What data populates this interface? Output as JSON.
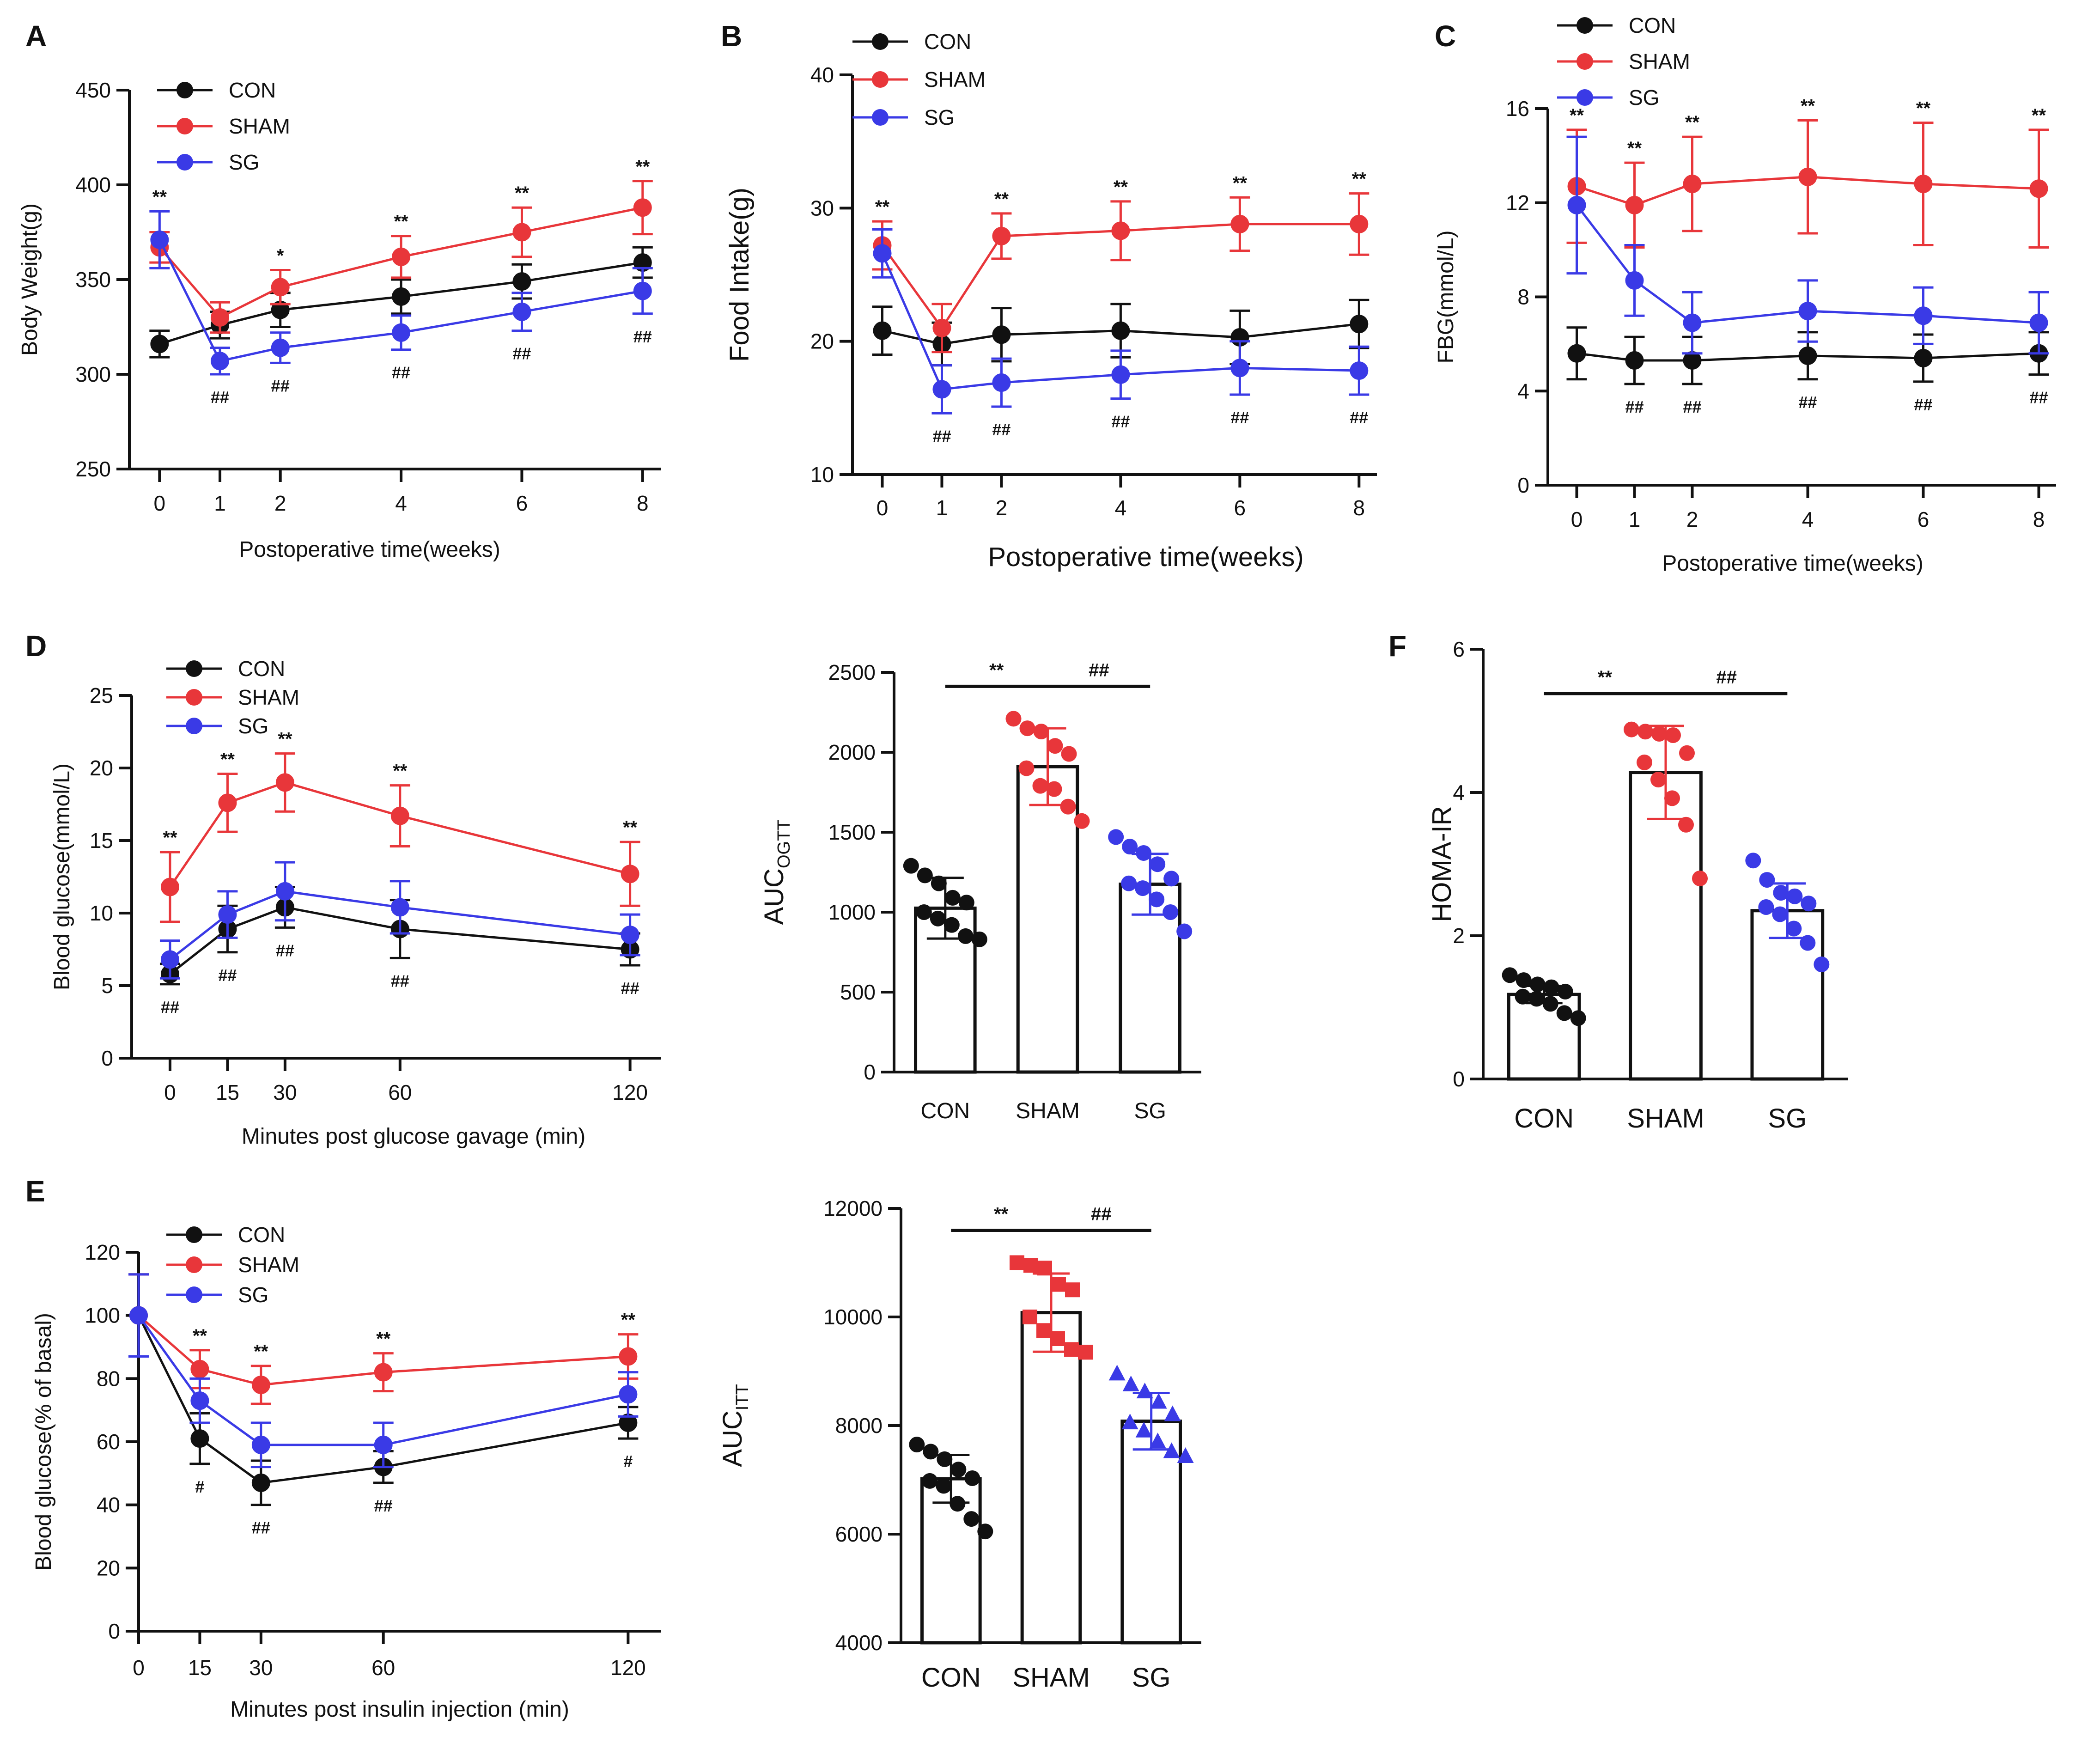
{
  "colors": {
    "CON": "#111111",
    "SHAM": "#e8363a",
    "SG": "#3a3ae6",
    "axis": "#111111"
  },
  "chart_data": [
    {
      "id": "A",
      "type": "line",
      "panel_label": "A",
      "title": "",
      "xlabel": "Postoperative time(weeks)",
      "ylabel": "Body Weight(g)",
      "x": [
        0,
        1,
        2,
        4,
        6,
        8
      ],
      "x_tick_labels": [
        "0",
        "1",
        "2",
        "4",
        "6",
        "8"
      ],
      "xlim": [
        -0.5,
        8.3
      ],
      "ylim": [
        250,
        450
      ],
      "y_ticks": [
        250,
        300,
        350,
        400,
        450
      ],
      "legend": [
        "CON",
        "SHAM",
        "SG"
      ],
      "legend_position": "top-left",
      "series": [
        {
          "name": "CON",
          "values": [
            316,
            326,
            334,
            341,
            349,
            359
          ],
          "errors": [
            7,
            7,
            9,
            9,
            9,
            8
          ]
        },
        {
          "name": "SHAM",
          "values": [
            367,
            330,
            346,
            362,
            375,
            388
          ],
          "errors": [
            8,
            8,
            9,
            11,
            13,
            14
          ]
        },
        {
          "name": "SG",
          "values": [
            371,
            307,
            314,
            322,
            333,
            344
          ],
          "errors": [
            15,
            7,
            8,
            9,
            10,
            12
          ]
        }
      ],
      "sig_top": [
        "**",
        "",
        "*",
        "**",
        "**",
        "**"
      ],
      "sig_bottom": [
        "",
        "##",
        "##",
        "##",
        "##",
        "##"
      ]
    },
    {
      "id": "B",
      "type": "line",
      "panel_label": "B",
      "title": "",
      "xlabel": "Postoperative time(weeks)",
      "ylabel": "Food Intake(g)",
      "x": [
        0,
        1,
        2,
        4,
        6,
        8
      ],
      "x_tick_labels": [
        "0",
        "1",
        "2",
        "4",
        "6",
        "8"
      ],
      "xlim": [
        -0.5,
        8.3
      ],
      "ylim": [
        10,
        40
      ],
      "y_ticks": [
        10,
        20,
        30,
        40
      ],
      "legend": [
        "CON",
        "SHAM",
        "SG"
      ],
      "legend_position": "top-left",
      "series": [
        {
          "name": "CON",
          "values": [
            20.8,
            19.8,
            20.5,
            20.8,
            20.3,
            21.3
          ],
          "errors": [
            1.8,
            1.6,
            2.0,
            2.0,
            2.0,
            1.8
          ]
        },
        {
          "name": "SHAM",
          "values": [
            27.2,
            21.0,
            27.9,
            28.3,
            28.8,
            28.8
          ],
          "errors": [
            1.8,
            1.8,
            1.7,
            2.2,
            2.0,
            2.3
          ]
        },
        {
          "name": "SG",
          "values": [
            26.6,
            16.4,
            16.9,
            17.5,
            18.0,
            17.8
          ],
          "errors": [
            1.8,
            1.8,
            1.8,
            1.8,
            2.0,
            1.8
          ]
        }
      ],
      "sig_top": [
        "**",
        "",
        "**",
        "**",
        "**",
        "**"
      ],
      "sig_bottom": [
        "",
        "##",
        "##",
        "##",
        "##",
        "##"
      ]
    },
    {
      "id": "C",
      "type": "line",
      "panel_label": "C",
      "title": "",
      "xlabel": "Postoperative time(weeks)",
      "ylabel": "FBG(mmol/L)",
      "x": [
        0,
        1,
        2,
        4,
        6,
        8
      ],
      "x_tick_labels": [
        "0",
        "1",
        "2",
        "4",
        "6",
        "8"
      ],
      "xlim": [
        -0.5,
        8.3
      ],
      "ylim": [
        0,
        16
      ],
      "y_ticks": [
        0,
        4,
        8,
        12,
        16
      ],
      "legend": [
        "CON",
        "SHAM",
        "SG"
      ],
      "legend_position": "top-left",
      "series": [
        {
          "name": "CON",
          "values": [
            5.6,
            5.3,
            5.3,
            5.5,
            5.4,
            5.6
          ],
          "errors": [
            1.1,
            1.0,
            1.0,
            1.0,
            1.0,
            0.9
          ]
        },
        {
          "name": "SHAM",
          "values": [
            12.7,
            11.9,
            12.8,
            13.1,
            12.8,
            12.6
          ],
          "errors": [
            2.4,
            1.8,
            2.0,
            2.4,
            2.6,
            2.5
          ]
        },
        {
          "name": "SG",
          "values": [
            11.9,
            8.7,
            6.9,
            7.4,
            7.2,
            6.9
          ],
          "errors": [
            2.9,
            1.5,
            1.3,
            1.3,
            1.2,
            1.3
          ]
        }
      ],
      "sig_top": [
        "**",
        "**",
        "**",
        "**",
        "**",
        "**"
      ],
      "sig_bottom": [
        "",
        "##",
        "##",
        "##",
        "##",
        "##"
      ]
    },
    {
      "id": "D-line",
      "type": "line",
      "panel_label": "D",
      "title": "",
      "xlabel": "Minutes post glucose gavage (min)",
      "ylabel": "Blood glucose(mmol/L)",
      "x": [
        0,
        15,
        30,
        60,
        120
      ],
      "x_tick_labels": [
        "0",
        "15",
        "30",
        "60",
        "120"
      ],
      "xlim": [
        -10,
        128
      ],
      "ylim": [
        0,
        25
      ],
      "y_ticks": [
        0,
        5,
        10,
        15,
        20,
        25
      ],
      "legend": [
        "CON",
        "SHAM",
        "SG"
      ],
      "legend_position": "top-left",
      "series": [
        {
          "name": "CON",
          "values": [
            5.8,
            8.9,
            10.4,
            8.9,
            7.5
          ],
          "errors": [
            0.7,
            1.6,
            1.4,
            2.0,
            1.1
          ]
        },
        {
          "name": "SHAM",
          "values": [
            11.8,
            17.6,
            19.0,
            16.7,
            12.7
          ],
          "errors": [
            2.4,
            2.0,
            2.0,
            2.1,
            2.2
          ]
        },
        {
          "name": "SG",
          "values": [
            6.8,
            9.9,
            11.5,
            10.4,
            8.5
          ],
          "errors": [
            1.3,
            1.6,
            2.0,
            1.8,
            1.4
          ]
        }
      ],
      "sig_top": [
        "**",
        "**",
        "**",
        "**",
        "**"
      ],
      "sig_bottom": [
        "##",
        "##",
        "##",
        "##",
        "##"
      ]
    },
    {
      "id": "D-bar",
      "type": "bar",
      "panel_label": "",
      "title": "",
      "xlabel": "",
      "ylabel": "AUC",
      "ylabel_subscript": "OGTT",
      "categories": [
        "CON",
        "SHAM",
        "SG"
      ],
      "values": [
        1025,
        1910,
        1175
      ],
      "errors": [
        190,
        240,
        190
      ],
      "ylim": [
        0,
        2500
      ],
      "y_ticks": [
        0,
        500,
        1000,
        1500,
        2000,
        2500
      ],
      "point_marker": "circle",
      "points": [
        [
          1290,
          1230,
          1180,
          1090,
          1060,
          1000,
          960,
          920,
          850,
          830
        ],
        [
          2210,
          2150,
          2130,
          2040,
          1990,
          1900,
          1790,
          1770,
          1660,
          1570
        ],
        [
          1470,
          1410,
          1370,
          1300,
          1210,
          1180,
          1150,
          1080,
          1000,
          880
        ]
      ],
      "comparisons": [
        {
          "from": 0,
          "to": 1,
          "label": "**"
        },
        {
          "from": 1,
          "to": 2,
          "label": "##"
        }
      ]
    },
    {
      "id": "F",
      "type": "bar",
      "panel_label": "F",
      "title": "",
      "xlabel": "",
      "ylabel": "HOMA-IR",
      "ylabel_subscript": "",
      "categories": [
        "CON",
        "SHAM",
        "SG"
      ],
      "values": [
        1.18,
        4.28,
        2.35
      ],
      "errors": [
        0.12,
        0.65,
        0.38
      ],
      "ylim": [
        0,
        6
      ],
      "y_ticks": [
        0,
        2,
        4,
        6
      ],
      "point_marker": "circle",
      "points": [
        [
          1.45,
          1.38,
          1.32,
          1.28,
          1.22,
          1.15,
          1.12,
          1.05,
          0.92,
          0.85
        ],
        [
          4.88,
          4.85,
          4.82,
          4.8,
          4.55,
          4.42,
          4.18,
          3.92,
          3.55,
          2.8
        ],
        [
          3.05,
          2.78,
          2.6,
          2.55,
          2.45,
          2.4,
          2.3,
          2.1,
          1.9,
          1.6
        ]
      ],
      "comparisons": [
        {
          "from": 0,
          "to": 1,
          "label": "**"
        },
        {
          "from": 1,
          "to": 2,
          "label": "##"
        }
      ]
    },
    {
      "id": "E-line",
      "type": "line",
      "panel_label": "E",
      "title": "",
      "xlabel": "Minutes post insulin injection (min)",
      "ylabel": "Blood glucose(% of basal)",
      "x": [
        0,
        15,
        30,
        60,
        120
      ],
      "x_tick_labels": [
        "0",
        "15",
        "30",
        "60",
        "120"
      ],
      "xlim": [
        0,
        128
      ],
      "ylim": [
        0,
        120
      ],
      "y_ticks": [
        0,
        20,
        40,
        60,
        80,
        100,
        120
      ],
      "legend": [
        "CON",
        "SHAM",
        "SG"
      ],
      "legend_position": "top-left",
      "series": [
        {
          "name": "CON",
          "values": [
            100,
            61,
            47,
            52,
            66
          ],
          "errors": [
            13,
            8,
            7,
            5,
            5
          ]
        },
        {
          "name": "SHAM",
          "values": [
            100,
            83,
            78,
            82,
            87
          ],
          "errors": [
            13,
            6,
            6,
            6,
            7
          ]
        },
        {
          "name": "SG",
          "values": [
            100,
            73,
            59,
            59,
            75
          ],
          "errors": [
            13,
            7,
            7,
            7,
            7
          ]
        }
      ],
      "sig_top": [
        "",
        "**",
        "**",
        "**",
        "**"
      ],
      "sig_bottom": [
        "",
        "#",
        "##",
        "##",
        "#"
      ]
    },
    {
      "id": "E-bar",
      "type": "bar",
      "panel_label": "",
      "title": "",
      "xlabel": "",
      "ylabel": "AUC",
      "ylabel_subscript": "ITT",
      "categories": [
        "CON",
        "SHAM",
        "SG"
      ],
      "values": [
        7020,
        10080,
        8080
      ],
      "errors": [
        440,
        720,
        520
      ],
      "ylim": [
        4000,
        12000
      ],
      "y_ticks": [
        4000,
        6000,
        8000,
        10000,
        12000
      ],
      "point_marker": [
        "circle",
        "square",
        "triangle"
      ],
      "points": [
        [
          7650,
          7520,
          7380,
          7190,
          7030,
          6980,
          6890,
          6560,
          6280,
          6050
        ],
        [
          11000,
          10950,
          10900,
          10600,
          10500,
          10000,
          9750,
          9600,
          9400,
          9350
        ],
        [
          8950,
          8750,
          8620,
          8430,
          8200,
          8050,
          7900,
          7700,
          7520,
          7430
        ]
      ],
      "comparisons": [
        {
          "from": 0,
          "to": 1,
          "label": "**"
        },
        {
          "from": 1,
          "to": 2,
          "label": "##"
        }
      ]
    }
  ]
}
